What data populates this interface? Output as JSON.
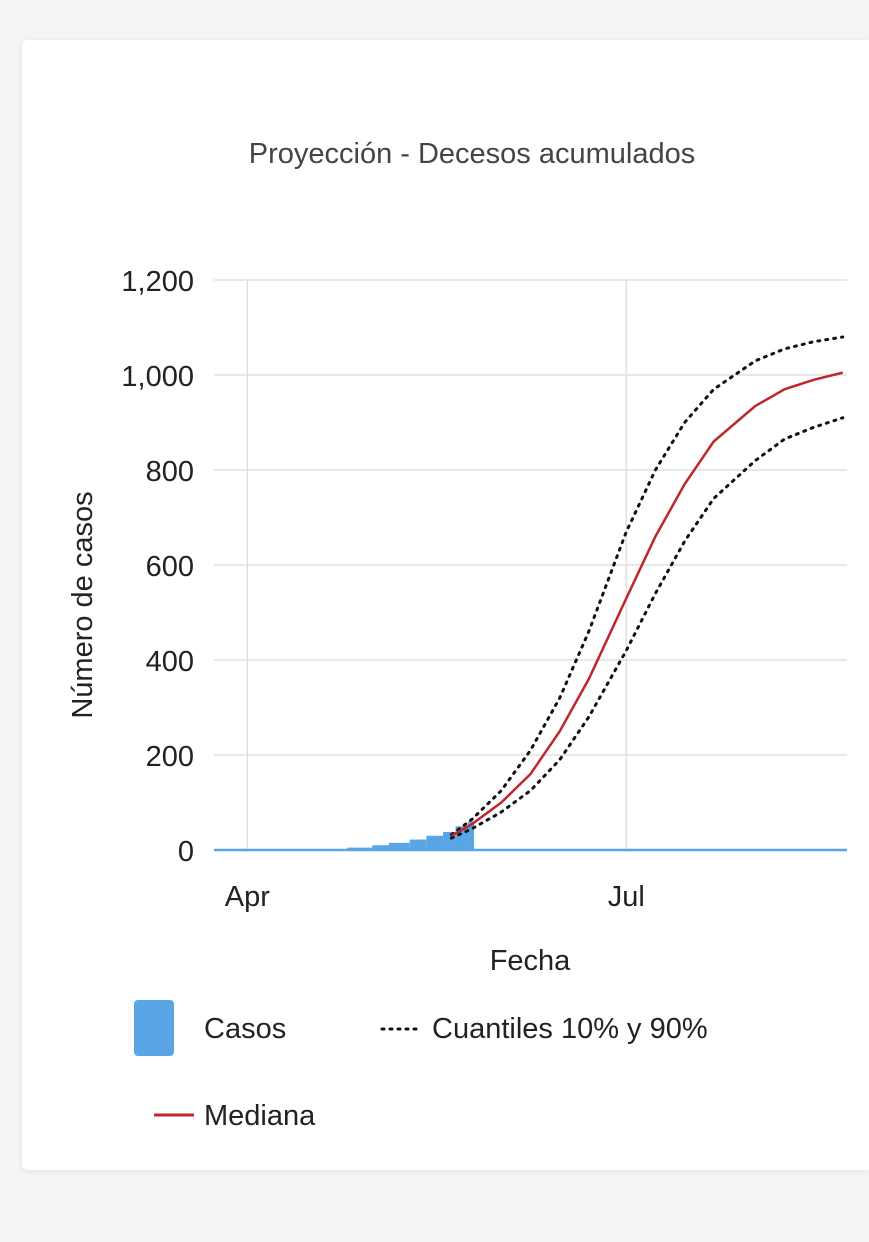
{
  "chart_data": {
    "type": "line",
    "title": "Proyección - Decesos acumulados",
    "xlabel": "Fecha",
    "ylabel": "Número de casos",
    "x_ticks": [
      "Apr",
      "Jul"
    ],
    "y_ticks": [
      "0",
      "200",
      "400",
      "600",
      "800",
      "1,000",
      "1,200"
    ],
    "ylim": [
      0,
      1200
    ],
    "xlim": [
      "2020-03-24",
      "2020-08-23"
    ],
    "grid": true,
    "legend_position": "bottom",
    "casos": {
      "name": "Casos",
      "x": [
        "2020-04-01",
        "2020-04-15",
        "2020-04-25",
        "2020-05-01",
        "2020-05-05",
        "2020-05-10",
        "2020-05-14",
        "2020-05-18",
        "2020-05-21",
        "2020-05-24"
      ],
      "values": [
        1,
        2,
        5,
        10,
        15,
        22,
        30,
        38,
        50,
        60
      ]
    },
    "mediana": {
      "name": "Mediana",
      "x": [
        "2020-05-20",
        "2020-05-25",
        "2020-06-01",
        "2020-06-08",
        "2020-06-15",
        "2020-06-22",
        "2020-07-01",
        "2020-07-08",
        "2020-07-15",
        "2020-07-22",
        "2020-08-01",
        "2020-08-08",
        "2020-08-15",
        "2020-08-22"
      ],
      "values": [
        30,
        55,
        100,
        160,
        250,
        360,
        530,
        660,
        770,
        860,
        935,
        970,
        990,
        1005
      ]
    },
    "cuantil_90": {
      "x": [
        "2020-05-20",
        "2020-05-25",
        "2020-06-01",
        "2020-06-08",
        "2020-06-15",
        "2020-06-22",
        "2020-07-01",
        "2020-07-08",
        "2020-07-15",
        "2020-07-22",
        "2020-08-01",
        "2020-08-08",
        "2020-08-15",
        "2020-08-22"
      ],
      "values": [
        32,
        65,
        125,
        210,
        320,
        460,
        670,
        800,
        900,
        970,
        1030,
        1055,
        1070,
        1080
      ]
    },
    "cuantil_10": {
      "x": [
        "2020-05-20",
        "2020-05-25",
        "2020-06-01",
        "2020-06-08",
        "2020-06-15",
        "2020-06-22",
        "2020-07-01",
        "2020-07-08",
        "2020-07-15",
        "2020-07-22",
        "2020-08-01",
        "2020-08-08",
        "2020-08-15",
        "2020-08-22"
      ],
      "values": [
        25,
        45,
        80,
        125,
        190,
        280,
        420,
        540,
        650,
        740,
        820,
        865,
        890,
        910
      ]
    },
    "legend": {
      "casos": "Casos",
      "cuantiles": "Cuantiles 10% y 90%",
      "mediana": "Mediana"
    },
    "colors": {
      "casos": "#5aa5e6",
      "mediana": "#c0262d",
      "cuantiles": "#111111",
      "grid": "#e0e0e0"
    }
  }
}
